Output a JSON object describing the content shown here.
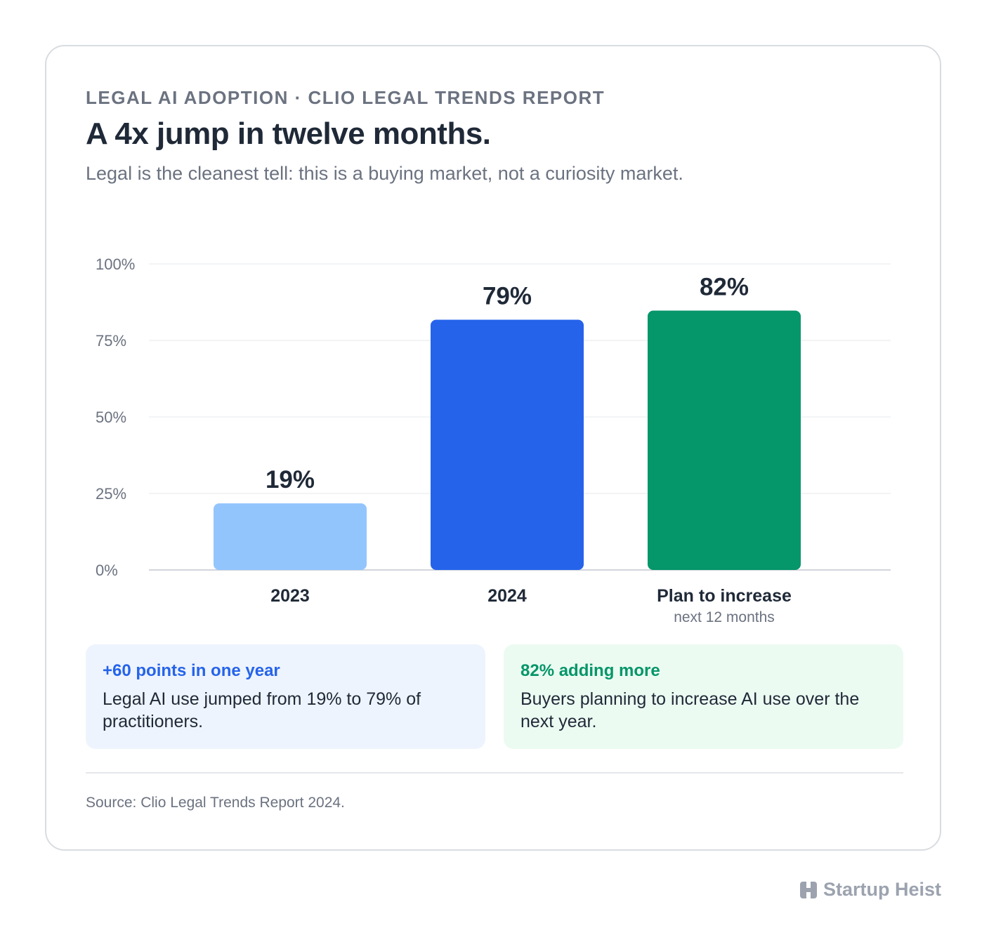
{
  "header": {
    "eyebrow": "LEGAL AI ADOPTION · CLIO LEGAL TRENDS REPORT",
    "title": "A 4x jump in twelve months.",
    "subtitle": "Legal is the cleanest tell: this is a buying market, not a curiosity market."
  },
  "chart_data": {
    "type": "bar",
    "categories": [
      "2023",
      "2024",
      "Plan to increase"
    ],
    "category_sublabels": [
      "",
      "",
      "next 12 months"
    ],
    "values": [
      19,
      79,
      82
    ],
    "value_labels": [
      "19%",
      "79%",
      "82%"
    ],
    "colors": [
      "#93c5fd",
      "#2563eb",
      "#059669"
    ],
    "ylim": [
      0,
      100
    ],
    "yticks": [
      0,
      25,
      50,
      75,
      100
    ],
    "ytick_labels": [
      "0%",
      "25%",
      "50%",
      "75%",
      "100%"
    ],
    "grid": true,
    "title": "",
    "xlabel": "",
    "ylabel": ""
  },
  "callouts": [
    {
      "heading": "+60 points in one year",
      "body": "Legal AI use jumped from 19% to 79% of practitioners.",
      "accent": "#2563eb"
    },
    {
      "heading": "82% adding more",
      "body": "Buyers planning to increase AI use over the next year.",
      "accent": "#059669"
    }
  ],
  "footer": {
    "source": "Source: Clio Legal Trends Report 2024.",
    "brand": "Startup Heist",
    "brand_icon": "startup-heist-logo-icon"
  }
}
